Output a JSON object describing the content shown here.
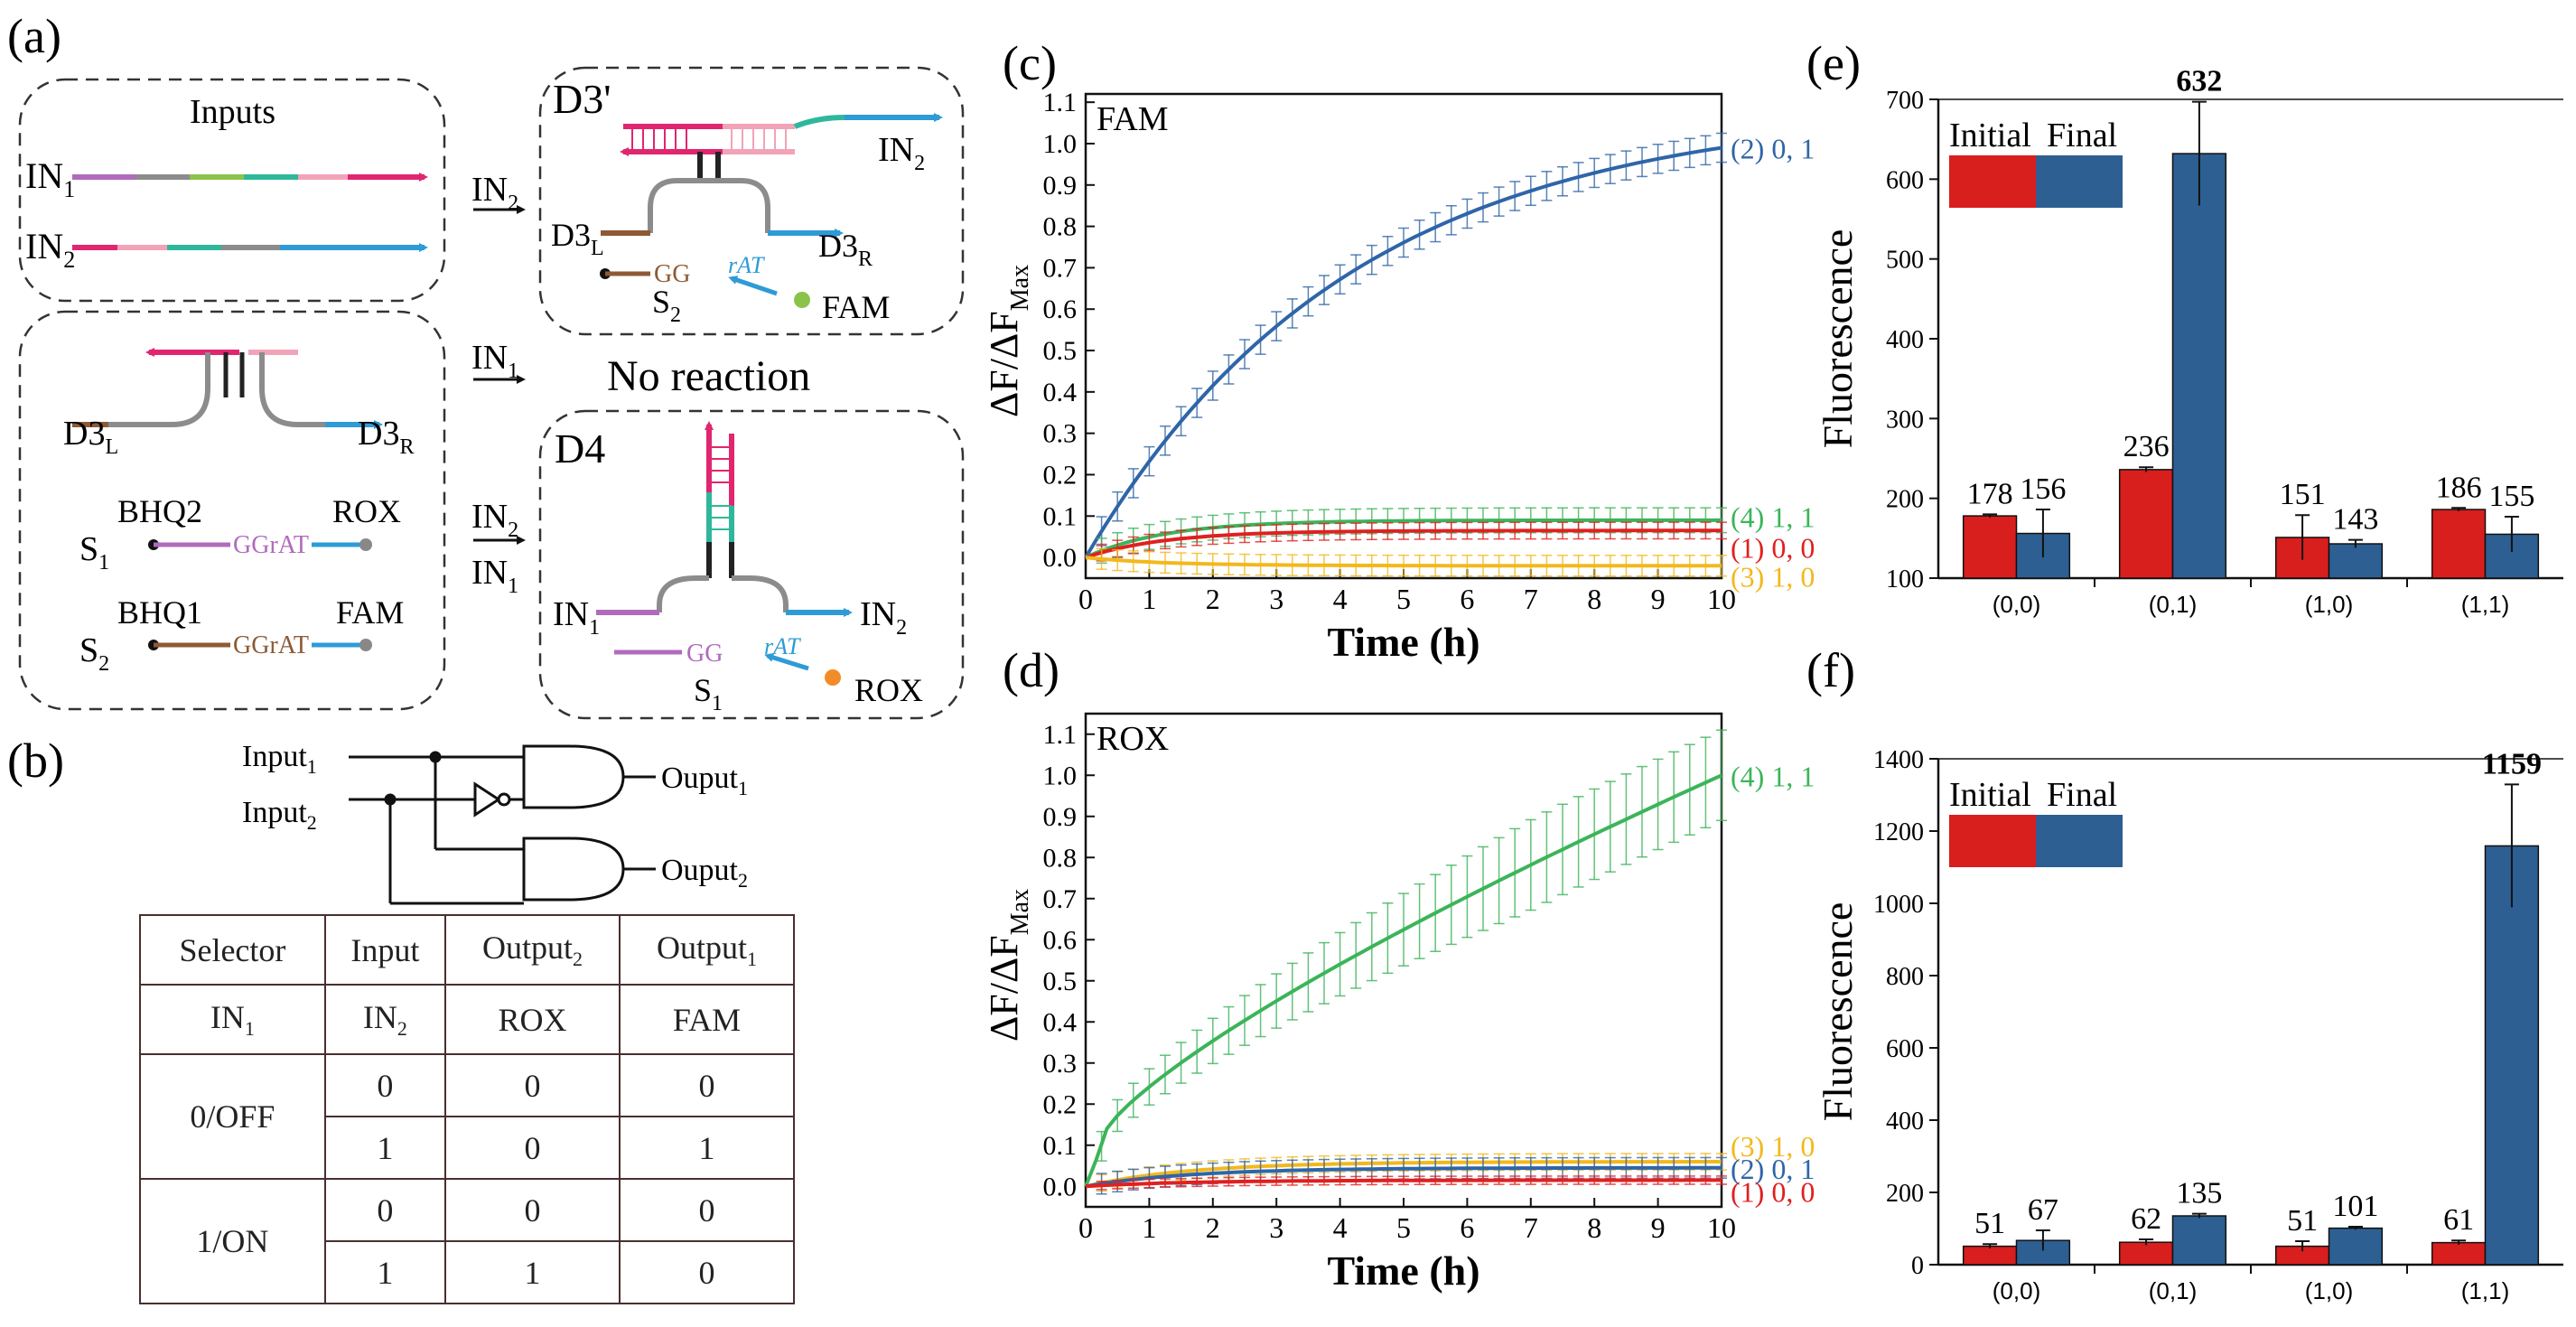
{
  "panels": {
    "a": "(a)",
    "b": "(b)",
    "c": "(c)",
    "d": "(d)",
    "e": "(e)",
    "f": "(f)"
  },
  "colors": {
    "red": "#e02020",
    "blue": "#2f65a8",
    "green": "#3cb45a",
    "yellow": "#f2b81c",
    "bar_initial": "#d91e1e",
    "bar_final": "#2d5f92",
    "pink": "#e0266f",
    "lightpink": "#f2a3b8",
    "teal": "#2fb79b",
    "gray": "#8c8c8c",
    "purple": "#b06bbd",
    "brown": "#8e5a34",
    "cyan": "#2e9bd6",
    "lime": "#8bc34a"
  },
  "diagram": {
    "inputs_title": "Inputs",
    "in1": "IN",
    "in1_sub": "1",
    "in2": "IN",
    "in2_sub": "2",
    "arrow_in2": "IN",
    "arrow_in2_sub": "2",
    "arrow_in1": "IN",
    "arrow_in1_sub": "1",
    "arrow_combo_top": "IN",
    "arrow_combo_top_sub": "2",
    "arrow_combo_bottom": "IN",
    "arrow_combo_bottom_sub": "1",
    "d3_prime": "D3'",
    "d4": "D4",
    "no_reaction": "No  reaction",
    "d3l": "D3",
    "d3l_sub": "L",
    "d3r": "D3",
    "d3r_sub": "R",
    "bhq2": "BHQ2",
    "rox": "ROX",
    "bhq1": "BHQ1",
    "fam": "FAM",
    "s1": "S",
    "s1_sub": "1",
    "s2": "S",
    "s2_sub": "2",
    "gg": "GG",
    "rat": "rAT",
    "ggrat": "GGrAT"
  },
  "logic": {
    "input1": "Input",
    "input1_sub": "1",
    "input2": "Input",
    "input2_sub": "2",
    "output1": "Ouput",
    "output1_sub": "1",
    "output2": "Ouput",
    "output2_sub": "2"
  },
  "truth_table": {
    "header": [
      "Selector",
      "Input",
      "Output",
      "Output"
    ],
    "header_subs": [
      "",
      "",
      "2",
      "1"
    ],
    "subheader": [
      "IN",
      "IN",
      "ROX",
      "FAM"
    ],
    "subheader_subs": [
      "1",
      "2",
      "",
      ""
    ],
    "groups": [
      {
        "selector": "0/OFF",
        "rows": [
          [
            "0",
            "0",
            "0"
          ],
          [
            "1",
            "0",
            "1"
          ]
        ]
      },
      {
        "selector": "1/ON",
        "rows": [
          [
            "0",
            "0",
            "0"
          ],
          [
            "1",
            "1",
            "0"
          ]
        ]
      }
    ]
  },
  "chart_data": [
    {
      "id": "c",
      "type": "line",
      "title": "FAM",
      "xlabel": "Time (h)",
      "ylabel": "ΔF/ΔF",
      "ylabel_sub": "Max",
      "xlim": [
        0,
        10
      ],
      "ylim": [
        -0.05,
        1.12
      ],
      "xticks": [
        0,
        1,
        2,
        3,
        4,
        5,
        6,
        7,
        8,
        9,
        10
      ],
      "yticks": [
        "0.0",
        "0.1",
        "0.2",
        "0.3",
        "0.4",
        "0.5",
        "0.6",
        "0.7",
        "0.8",
        "0.9",
        "1.0",
        "1.1"
      ],
      "series": [
        {
          "name": "(2) 0, 1",
          "color": "#2f65a8",
          "kind": "rise",
          "final": 0.99,
          "rate": 0.24,
          "err": 0.035
        },
        {
          "name": "(4) 1, 1",
          "color": "#3cb45a",
          "kind": "sat",
          "final": 0.09,
          "rate": 0.8,
          "err": 0.03
        },
        {
          "name": "(1) 0, 0",
          "color": "#e02020",
          "kind": "sat",
          "final": 0.065,
          "rate": 0.8,
          "err": 0.02
        },
        {
          "name": "(3) 1, 0",
          "color": "#f2b81c",
          "kind": "dip",
          "final": -0.02,
          "rate": 0.8,
          "err": 0.025
        }
      ]
    },
    {
      "id": "d",
      "type": "line",
      "title": "ROX",
      "xlabel": "Time (h)",
      "ylabel": "ΔF/ΔF",
      "ylabel_sub": "Max",
      "xlim": [
        0,
        10
      ],
      "ylim": [
        -0.05,
        1.15
      ],
      "xticks": [
        0,
        1,
        2,
        3,
        4,
        5,
        6,
        7,
        8,
        9,
        10
      ],
      "yticks": [
        "0.0",
        "0.1",
        "0.2",
        "0.3",
        "0.4",
        "0.5",
        "0.6",
        "0.7",
        "0.8",
        "0.9",
        "1.0",
        "1.1"
      ],
      "series": [
        {
          "name": "(4) 1, 1",
          "color": "#3cb45a",
          "kind": "green",
          "final": 1.0,
          "rate": 0,
          "err": 0.11
        },
        {
          "name": "(3) 1, 0",
          "color": "#f2b81c",
          "kind": "sat",
          "final": 0.06,
          "rate": 0.6,
          "err": 0.02
        },
        {
          "name": "(2) 0, 1",
          "color": "#2f65a8",
          "kind": "sat",
          "final": 0.045,
          "rate": 0.6,
          "err": 0.025
        },
        {
          "name": "(1) 0, 0",
          "color": "#e02020",
          "kind": "sat",
          "final": 0.015,
          "rate": 0.6,
          "err": 0.01
        }
      ]
    },
    {
      "id": "e",
      "type": "bar",
      "ylabel": "Fluorescence",
      "ylim": [
        100,
        700
      ],
      "yticks": [
        100,
        200,
        300,
        400,
        500,
        600,
        700
      ],
      "categories": [
        "(0,0)",
        "(0,1)",
        "(1,0)",
        "(1,1)"
      ],
      "legend": [
        "Initial",
        "Final"
      ],
      "series": [
        {
          "name": "Initial",
          "values": [
            178,
            236,
            151,
            186
          ],
          "err": [
            2,
            3,
            28,
            2
          ]
        },
        {
          "name": "Final",
          "values": [
            156,
            632,
            143,
            155
          ],
          "err": [
            30,
            65,
            5,
            22
          ]
        }
      ]
    },
    {
      "id": "f",
      "type": "bar",
      "ylabel": "Fluorescence",
      "ylim": [
        0,
        1400
      ],
      "yticks": [
        0,
        200,
        400,
        600,
        800,
        1000,
        1200,
        1400
      ],
      "categories": [
        "(0,0)",
        "(0,1)",
        "(1,0)",
        "(1,1)"
      ],
      "legend": [
        "Initial",
        "Final"
      ],
      "series": [
        {
          "name": "Initial",
          "values": [
            51,
            62,
            51,
            61
          ],
          "err": [
            6,
            8,
            14,
            6
          ]
        },
        {
          "name": "Final",
          "values": [
            67,
            135,
            101,
            1159
          ],
          "err": [
            28,
            6,
            4,
            170
          ]
        }
      ]
    }
  ]
}
